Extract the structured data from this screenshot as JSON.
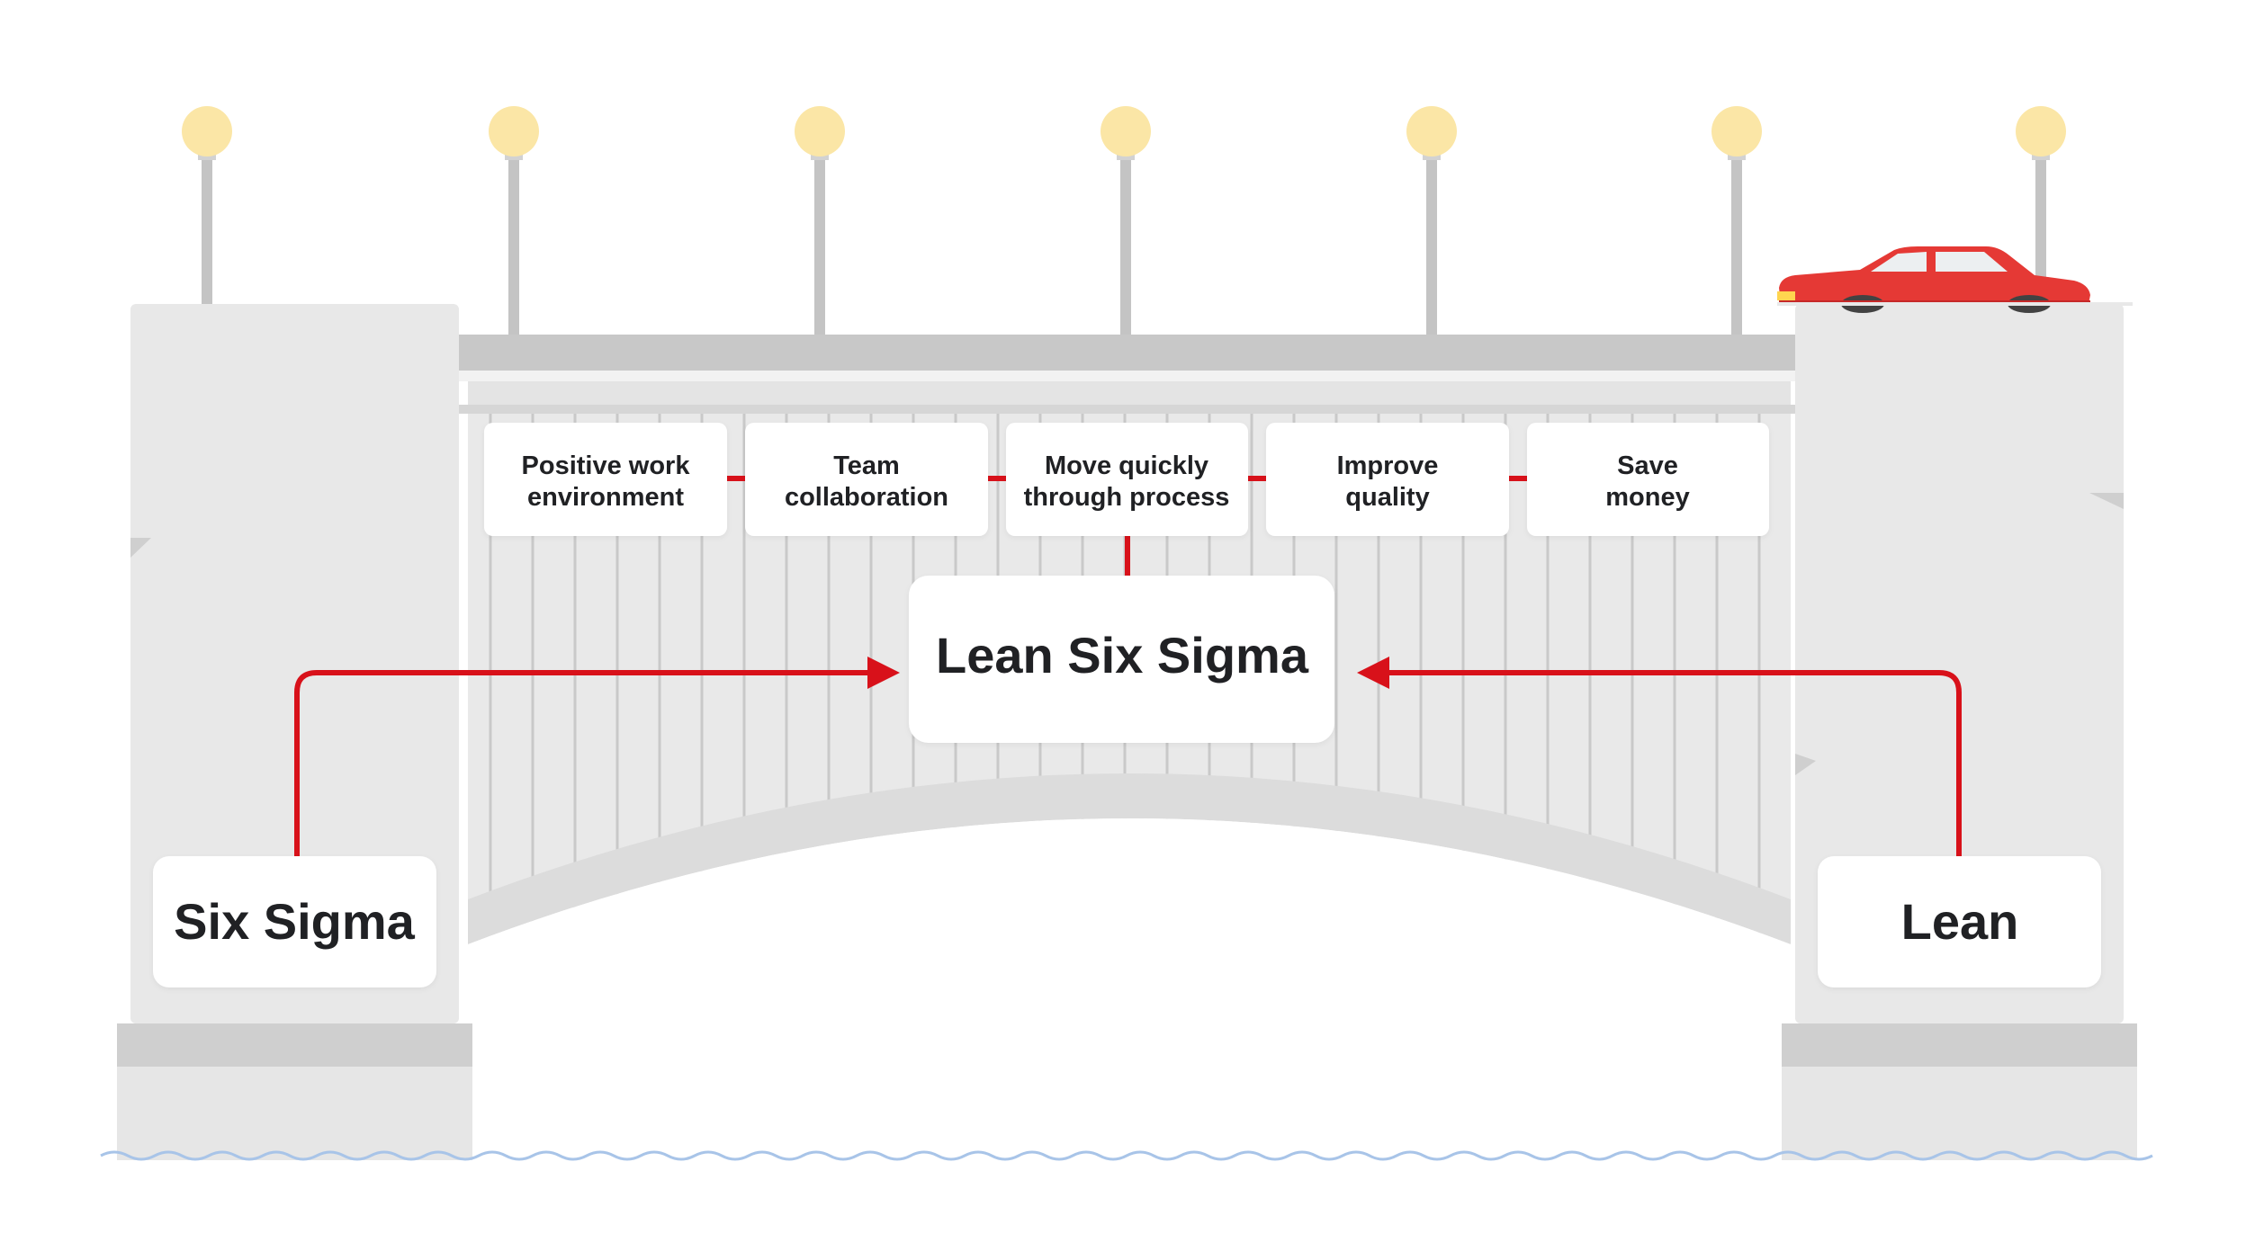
{
  "benefits": [
    {
      "line1": "Positive work",
      "line2": "environment"
    },
    {
      "line1": "Team",
      "line2": "collaboration"
    },
    {
      "line1": "Move quickly",
      "line2": "through process"
    },
    {
      "line1": "Improve",
      "line2": "quality"
    },
    {
      "line1": "Save",
      "line2": "money"
    }
  ],
  "center_label": "Lean Six Sigma",
  "left_label": "Six Sigma",
  "right_label": "Lean",
  "colors": {
    "connector": "#d8111a",
    "stone": "#e8e8e8",
    "stone_dark": "#d0d0d0",
    "lamp": "#fbe6a6",
    "car": "#e53935",
    "water": "#a8c4e8"
  },
  "icons": [
    "lamp-post-icon",
    "car-icon",
    "water-wave-icon"
  ]
}
